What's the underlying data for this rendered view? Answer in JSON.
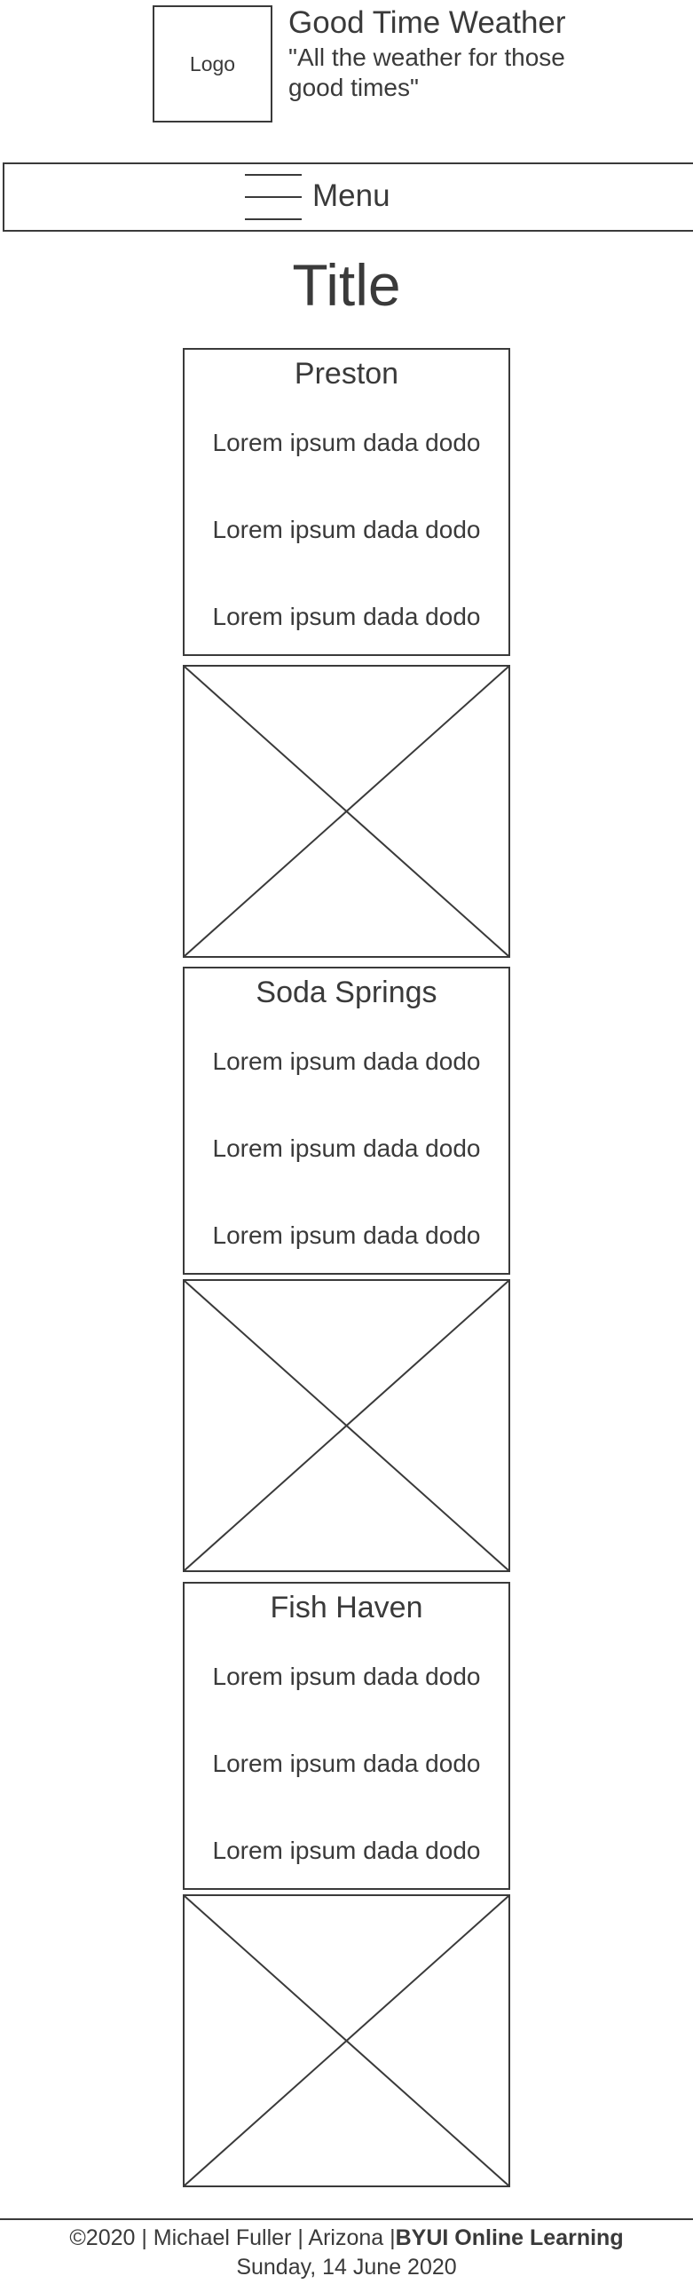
{
  "header": {
    "logo_label": "Logo",
    "site_name": "Good Time Weather",
    "tagline": "\"All the weather for those good times\""
  },
  "nav": {
    "menu_label": "Menu"
  },
  "main": {
    "title": "Title",
    "towns": [
      {
        "name": "Preston",
        "lines": [
          "Lorem ipsum dada dodo",
          "Lorem ipsum dada dodo",
          "Lorem ipsum dada dodo"
        ]
      },
      {
        "name": "Soda Springs",
        "lines": [
          "Lorem ipsum dada dodo",
          "Lorem ipsum dada dodo",
          "Lorem ipsum dada dodo"
        ]
      },
      {
        "name": "Fish Haven",
        "lines": [
          "Lorem ipsum dada dodo",
          "Lorem ipsum dada dodo",
          "Lorem ipsum dada dodo"
        ]
      }
    ]
  },
  "footer": {
    "copyright": "©2020 | Michael Fuller | Arizona |",
    "org": "BYUI Online Learning",
    "date": "Sunday, 14 June 2020"
  },
  "colors": {
    "ink": "#3a3a3a",
    "background": "#ffffff"
  },
  "icons": {
    "menu": "hamburger-icon",
    "image_placeholder": "image-placeholder-x"
  }
}
